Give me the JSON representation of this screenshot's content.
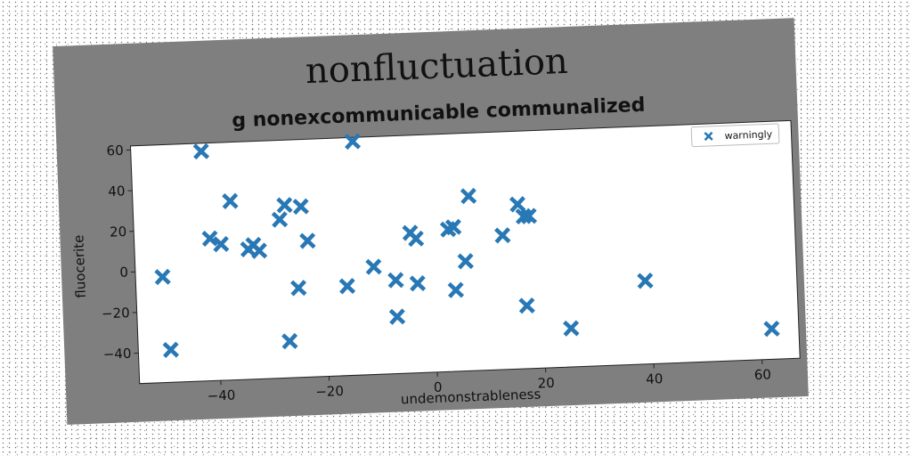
{
  "chart_data": {
    "type": "scatter",
    "title": "nonfluctuation",
    "subtitle": "g nonexcommunicable communalized",
    "xlabel": "undemonstrableness",
    "ylabel": "fluocerite",
    "xlim": [
      -55,
      67
    ],
    "ylim": [
      -55,
      62
    ],
    "xticks": [
      -40,
      -20,
      0,
      20,
      40,
      60
    ],
    "yticks": [
      -40,
      -20,
      0,
      20,
      40,
      60
    ],
    "grid": false,
    "legend_position": "top-right",
    "series": [
      {
        "name": "warningly",
        "color": "#2878b5",
        "marker": "X",
        "points": [
          [
            -50,
            -3
          ],
          [
            -49,
            -39
          ],
          [
            -42,
            58
          ],
          [
            -41,
            15
          ],
          [
            -39,
            12
          ],
          [
            -37,
            33
          ],
          [
            -34,
            9
          ],
          [
            -33,
            11
          ],
          [
            -32,
            8
          ],
          [
            -28,
            23
          ],
          [
            -27,
            30
          ],
          [
            -27,
            -37
          ],
          [
            -25,
            -11
          ],
          [
            -24,
            29
          ],
          [
            -23,
            12
          ],
          [
            -14,
            60
          ],
          [
            -16,
            -11
          ],
          [
            -11,
            -2
          ],
          [
            -7,
            -9
          ],
          [
            -7,
            -27
          ],
          [
            -4,
            14
          ],
          [
            -3,
            11
          ],
          [
            -3,
            -11
          ],
          [
            3,
            15
          ],
          [
            4,
            16
          ],
          [
            4,
            -15
          ],
          [
            6,
            -1
          ],
          [
            7,
            31
          ],
          [
            13,
            11
          ],
          [
            16,
            26
          ],
          [
            17,
            20
          ],
          [
            18,
            20
          ],
          [
            17,
            -24
          ],
          [
            25,
            -36
          ],
          [
            39,
            -14
          ],
          [
            62,
            -40
          ]
        ]
      }
    ]
  }
}
